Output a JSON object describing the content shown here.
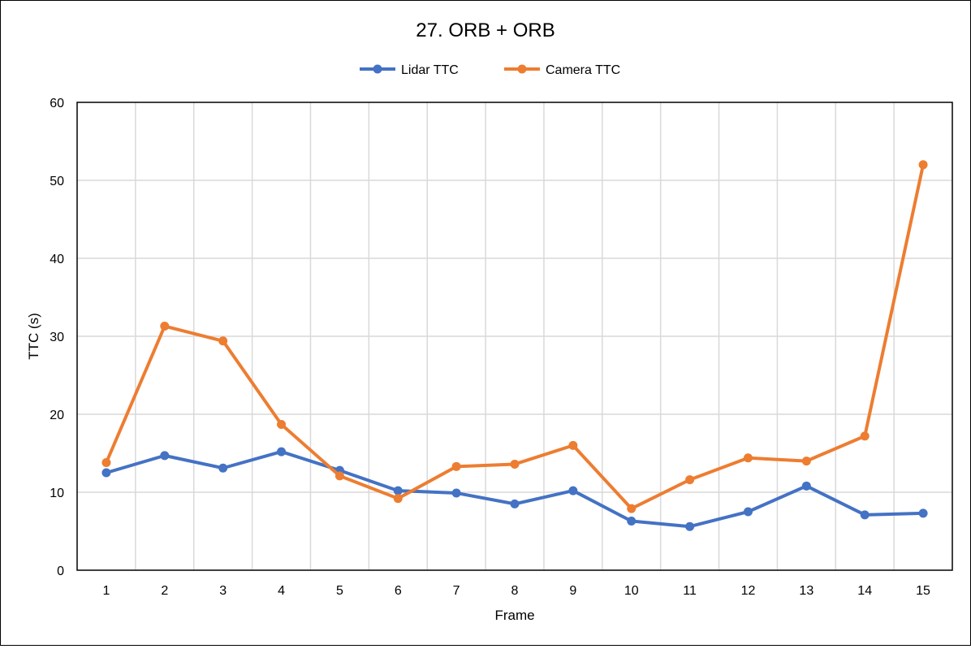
{
  "chart_data": {
    "type": "line",
    "title": "27. ORB + ORB",
    "xlabel": "Frame",
    "ylabel": "TTC (s)",
    "categories": [
      "1",
      "2",
      "3",
      "4",
      "5",
      "6",
      "7",
      "8",
      "9",
      "10",
      "11",
      "12",
      "13",
      "14",
      "15"
    ],
    "ylim": [
      0,
      60
    ],
    "yticks": [
      0,
      10,
      20,
      30,
      40,
      50,
      60
    ],
    "grid": true,
    "legend_position": "top",
    "series": [
      {
        "name": "Lidar TTC",
        "color": "#4472C4",
        "values": [
          12.5,
          14.7,
          13.1,
          15.2,
          12.8,
          10.2,
          9.9,
          8.5,
          10.2,
          6.3,
          5.6,
          7.5,
          10.8,
          7.1,
          7.3
        ]
      },
      {
        "name": "Camera TTC",
        "color": "#ED7D31",
        "values": [
          13.8,
          31.3,
          29.4,
          18.7,
          12.1,
          9.2,
          13.3,
          13.6,
          16.0,
          7.9,
          11.6,
          14.4,
          14.0,
          17.2,
          52.0
        ]
      }
    ]
  }
}
